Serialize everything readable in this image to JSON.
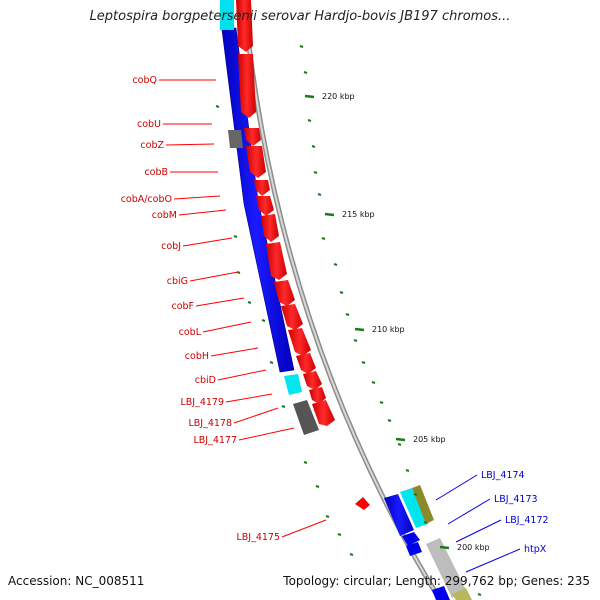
{
  "title": "Leptospira borgpetersenii serovar Hardjo-bovis JB197 chromos...",
  "footer": {
    "accession": "Accession: NC_008511",
    "topology": "Topology: circular; Length: 299,762 bp; Genes: 235"
  },
  "scale": [
    {
      "label": "220 kbp",
      "bp": 220000
    },
    {
      "label": "215 kbp",
      "bp": 215000
    },
    {
      "label": "210 kbp",
      "bp": 210000
    },
    {
      "label": "205 kbp",
      "bp": 205000
    },
    {
      "label": "200 kbp",
      "bp": 200000
    }
  ],
  "labels_left": [
    "cobQ",
    "cobU",
    "cobZ",
    "cobB",
    "cobA/cobO",
    "cobM",
    "cobJ",
    "cbiG",
    "cobF",
    "cobL",
    "cobH",
    "cbiD",
    "LBJ_4179",
    "LBJ_4178",
    "LBJ_4177",
    "LBJ_4175"
  ],
  "labels_right": [
    "LBJ_4174",
    "LBJ_4173",
    "LBJ_4172",
    "htpX"
  ],
  "colors": {
    "red_gene": "#ff0000",
    "blue_gene": "#0000ee",
    "cyan_gene": "#00e5ee",
    "gray_gene": "#666666",
    "olive_gene": "#8a8a2a",
    "label_red": "#cc0000",
    "label_blue": "#0000cc",
    "tick_green": "#1a7a1a"
  }
}
